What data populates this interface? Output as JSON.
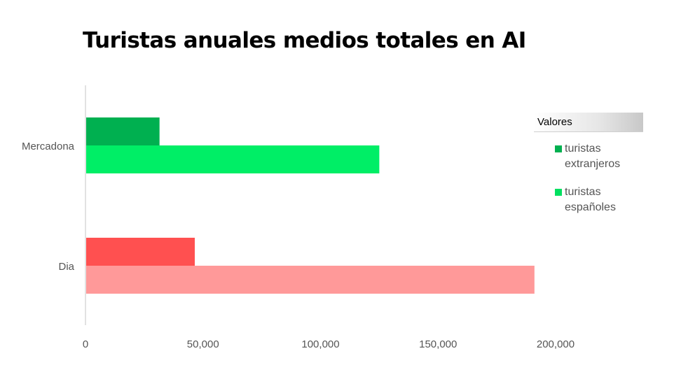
{
  "title": "Turistas anuales medios totales en AI",
  "legend": {
    "header": "Valores",
    "items": [
      {
        "label": "turistas extranjeros",
        "color": "#00b050"
      },
      {
        "label": "turistas españoles",
        "color": "#00e060"
      }
    ]
  },
  "chart_data": {
    "type": "bar",
    "orientation": "horizontal",
    "categories": [
      "Mercadona",
      "Dia"
    ],
    "series": [
      {
        "name": "turistas extranjeros",
        "values": [
          31500,
          46500
        ],
        "colors": [
          "#00b050",
          "#ff5050"
        ]
      },
      {
        "name": "turistas españoles",
        "values": [
          125000,
          191000
        ],
        "colors": [
          "#00ee66",
          "#ff9999"
        ]
      }
    ],
    "xlim": [
      0,
      200000
    ],
    "xticks": [
      "0",
      "50,000",
      "100,000",
      "150,000",
      "200,000"
    ],
    "xtick_values": [
      0,
      50000,
      100000,
      150000,
      200000
    ],
    "grid": false,
    "legend_position": "right"
  }
}
